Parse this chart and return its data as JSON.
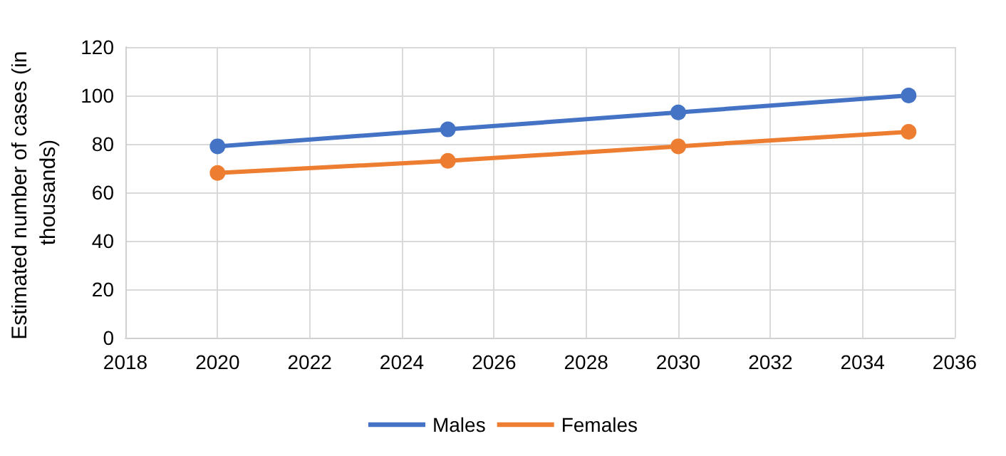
{
  "chart_data": {
    "type": "line",
    "ylabel": "Estimated number of cases (in thousands)",
    "x": [
      2020,
      2025,
      2030,
      2035
    ],
    "series": [
      {
        "name": "Males",
        "color": "#4472c4",
        "values": [
          79,
          86,
          93,
          100
        ]
      },
      {
        "name": "Females",
        "color": "#ed7d31",
        "values": [
          68,
          73,
          79,
          85
        ]
      }
    ],
    "xlim": [
      2018,
      2036
    ],
    "xticks": [
      2018,
      2020,
      2022,
      2024,
      2026,
      2028,
      2030,
      2032,
      2034,
      2036
    ],
    "ylim": [
      0,
      120
    ],
    "yticks": [
      0,
      20,
      40,
      60,
      80,
      100,
      120
    ],
    "grid": true,
    "legend": "bottom",
    "marker": "circle",
    "line_style": "solid"
  }
}
